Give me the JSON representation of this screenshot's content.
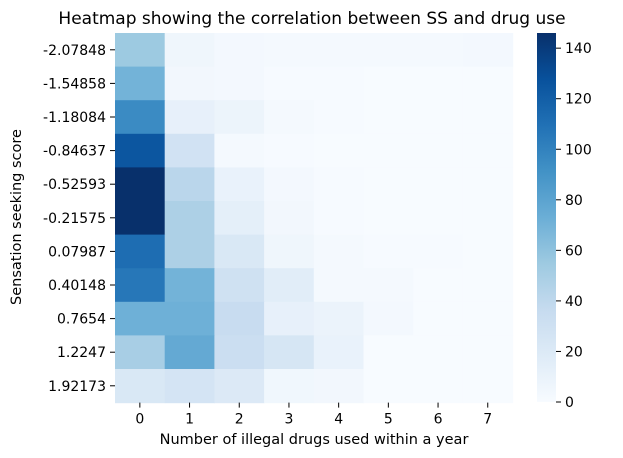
{
  "chart_data": {
    "type": "heatmap",
    "title": "Heatmap showing the correlation between SS and drug use",
    "xlabel": "Number of illegal drugs used within a year",
    "ylabel": "Sensation seeking score",
    "x_categories": [
      "0",
      "1",
      "2",
      "3",
      "4",
      "5",
      "6",
      "7"
    ],
    "y_categories": [
      "-2.07848",
      "-1.54858",
      "-1.18084",
      "-0.84637",
      "-0.52593",
      "-0.21575",
      "0.07987",
      "0.40148",
      "0.7654",
      "1.2247",
      "1.92173"
    ],
    "values": [
      [
        55,
        6,
        3,
        2,
        2,
        2,
        2,
        3
      ],
      [
        70,
        4,
        3,
        1,
        1,
        0,
        0,
        0
      ],
      [
        95,
        12,
        8,
        2,
        1,
        0,
        0,
        0
      ],
      [
        125,
        28,
        2,
        1,
        0,
        0,
        0,
        0
      ],
      [
        146,
        42,
        10,
        3,
        1,
        0,
        0,
        0
      ],
      [
        146,
        48,
        14,
        4,
        1,
        0,
        0,
        0
      ],
      [
        112,
        48,
        22,
        6,
        2,
        1,
        1,
        0
      ],
      [
        106,
        70,
        30,
        16,
        2,
        2,
        0,
        0
      ],
      [
        72,
        72,
        35,
        12,
        9,
        3,
        0,
        0
      ],
      [
        50,
        76,
        33,
        24,
        10,
        0,
        0,
        0
      ],
      [
        22,
        26,
        20,
        5,
        4,
        0,
        0,
        0
      ]
    ],
    "colorbar": {
      "min": 0,
      "max": 146,
      "ticks": [
        0,
        20,
        40,
        60,
        80,
        100,
        120,
        140
      ]
    },
    "colormap": [
      "#f7fbff",
      "#deebf7",
      "#c6dbef",
      "#9ecae1",
      "#6baed6",
      "#4292c6",
      "#2171b5",
      "#08519c",
      "#08306b"
    ]
  }
}
